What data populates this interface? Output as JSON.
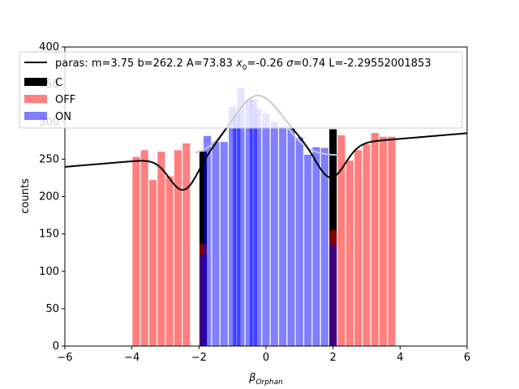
{
  "chart_data": {
    "type": "bar",
    "xlabel": "β",
    "xlabel_sub": "Orphan",
    "ylabel": "counts",
    "xlim": [
      -6,
      6
    ],
    "ylim": [
      0,
      400
    ],
    "xticks": [
      -6,
      -4,
      -2,
      0,
      2,
      4,
      6
    ],
    "yticks": [
      0,
      50,
      100,
      150,
      200,
      250,
      300,
      350,
      400
    ],
    "xtick_labels": [
      "−6",
      "−4",
      "−2",
      "0",
      "2",
      "4",
      "6"
    ],
    "ytick_labels": [
      "0",
      "50",
      "100",
      "150",
      "200",
      "250",
      "300",
      "350",
      "400"
    ],
    "bin_width": 0.25,
    "legend_position": "upper-left",
    "colors": {
      "C": "#000000",
      "OFF": "#ff0000",
      "OFF_alpha": 0.5,
      "ON": "#0000ff",
      "ON_alpha": 0.5,
      "fit": "#000000",
      "bg_curve": "#c8c8c8"
    },
    "series": [
      {
        "name": "C",
        "bin_starts": [
          -2.0,
          1.875
        ],
        "values": [
          260,
          290
        ]
      },
      {
        "name": "OFF",
        "bin_starts": [
          -4.0,
          -3.75,
          -3.5,
          -3.25,
          -3.0,
          -2.75,
          -2.5,
          -2.25,
          -2.0,
          1.875,
          2.125,
          2.375,
          2.625,
          2.875,
          3.125,
          3.375,
          3.625,
          3.875
        ],
        "values": [
          253,
          262,
          222,
          260,
          227,
          262,
          271,
          0,
          137,
          155,
          282,
          248,
          262,
          270,
          285,
          280,
          280,
          0
        ]
      },
      {
        "name": "ON",
        "bin_starts": [
          -2.0,
          -1.875,
          -1.625,
          -1.375,
          -1.125,
          -1.0,
          -0.875,
          -0.625,
          -0.5,
          -0.375,
          -0.125,
          0.125,
          0.375,
          0.625,
          0.875,
          1.125,
          1.375,
          1.625,
          1.875
        ],
        "values": [
          122,
          281,
          273,
          273,
          320,
          310,
          345,
          330,
          330,
          317,
          311,
          300,
          293,
          293,
          279,
          256,
          266,
          265,
          135
        ]
      }
    ],
    "fit_line": {
      "label": "paras: m=3.75 b=262.2 A=73.83 ",
      "label_x0": "x",
      "label_x0_sub": "0",
      "label_mid": "=-0.26 ",
      "label_sigma": "σ",
      "label_end": "=0.74 L=-2.29552001853",
      "m": 3.75,
      "b": 262.2,
      "A": 73.83,
      "x0": -0.26,
      "sigma": 0.74
    },
    "gauss_curve_peak": 335
  }
}
